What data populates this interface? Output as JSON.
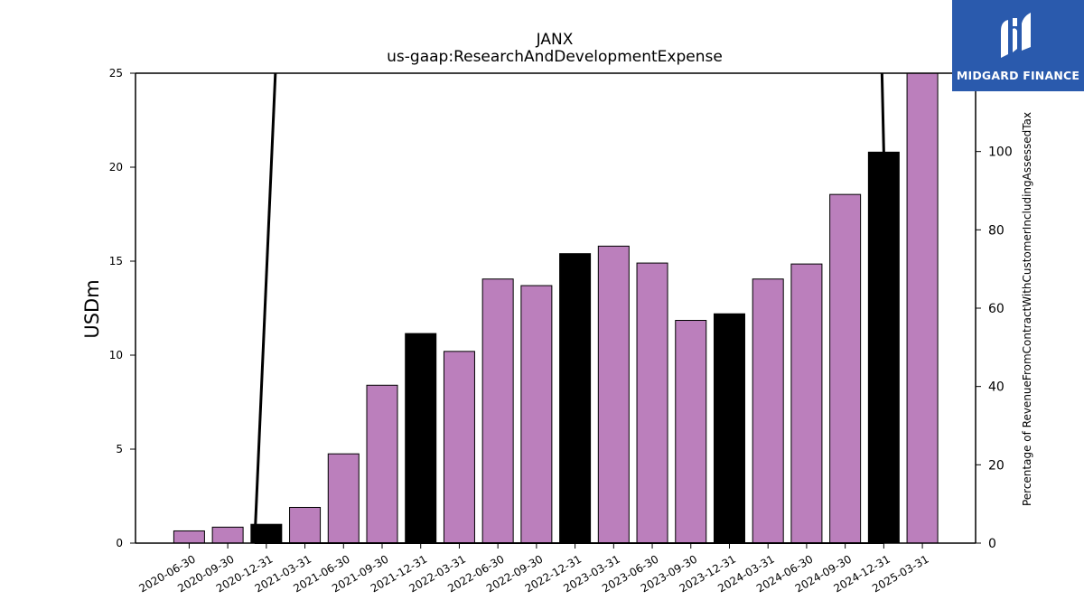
{
  "chart_data": {
    "type": "bar",
    "title": "JANX",
    "subtitle": "us-gaap:ResearchAndDevelopmentExpense",
    "ylabel": "USDm",
    "y2label": "Percentage of RevenueFromContractWithCustomerIncludingAssessedTax",
    "ylim": [
      0,
      25
    ],
    "y2lim": [
      0,
      120
    ],
    "yticks": [
      0,
      5,
      10,
      15,
      20,
      25
    ],
    "y2ticks": [
      0,
      20,
      40,
      60,
      80,
      100
    ],
    "categories": [
      "2020-06-30",
      "2020-09-30",
      "2020-12-31",
      "2021-03-31",
      "2021-06-30",
      "2021-09-30",
      "2021-12-31",
      "2022-03-31",
      "2022-06-30",
      "2022-09-30",
      "2022-12-31",
      "2023-03-31",
      "2023-06-30",
      "2023-09-30",
      "2023-12-31",
      "2024-03-31",
      "2024-06-30",
      "2024-09-30",
      "2024-12-31",
      "2025-03-31"
    ],
    "values": [
      0.65,
      0.85,
      1.0,
      1.9,
      4.75,
      8.4,
      11.15,
      10.2,
      14.05,
      13.7,
      15.4,
      15.8,
      14.9,
      11.85,
      12.2,
      14.05,
      14.85,
      18.55,
      20.8,
      25.0
    ],
    "highlight_categories": [
      "2020-12-31",
      "2021-12-31",
      "2022-12-31",
      "2023-12-31",
      "2024-12-31"
    ],
    "colors": {
      "bar": "#bb7fbc",
      "highlight": "#000000",
      "line": "#000000",
      "axis": "#000000"
    },
    "line_series": {
      "axis": "secondary",
      "x": [
        "2020-12-31",
        "2024-12-31"
      ],
      "points": [
        {
          "x": "2020-12-31",
          "y": 2.5
        },
        {
          "x": "2020-12-31",
          "y": 0.0
        },
        {
          "x": "2024-12-31",
          "y": 0.0
        }
      ]
    }
  },
  "logo": {
    "text": "MIDGARD FINANCE"
  }
}
